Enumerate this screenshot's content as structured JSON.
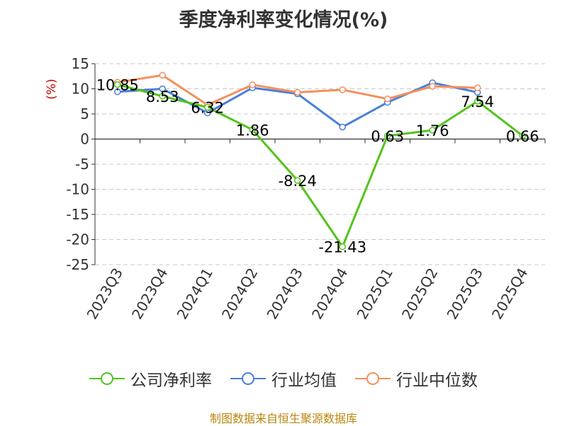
{
  "chart_data": {
    "type": "line",
    "title": "季度净利率变化情况(%)",
    "ylabel": "(%)",
    "xlabel": "",
    "categories": [
      "2023Q3",
      "2023Q4",
      "2024Q1",
      "2024Q2",
      "2024Q3",
      "2024Q4",
      "2025Q1",
      "2025Q2",
      "2025Q3",
      "2025Q4"
    ],
    "ylim": [
      -25,
      15
    ],
    "yticks": [
      15,
      10,
      5,
      0,
      -5,
      -10,
      -15,
      -20,
      -25
    ],
    "grid": true,
    "legend_position": "bottom",
    "series": [
      {
        "name": "公司净利率",
        "color": "#52c41a",
        "values": [
          10.85,
          8.53,
          6.32,
          1.86,
          -8.24,
          -21.43,
          0.63,
          1.76,
          7.54,
          0.66
        ],
        "labels": [
          "10.85",
          "8.53",
          "6.32",
          "1.86",
          "-8.24",
          "-21.43",
          "0.63",
          "1.76",
          "7.54",
          "0.66"
        ]
      },
      {
        "name": "行业均值",
        "color": "#4a7fd8",
        "values": [
          9.4,
          10.0,
          5.2,
          10.2,
          9.0,
          2.4,
          7.3,
          11.2,
          9.3,
          null
        ]
      },
      {
        "name": "行业中位数",
        "color": "#f58f5c",
        "values": [
          11.3,
          12.7,
          6.8,
          10.8,
          9.3,
          9.8,
          8.0,
          10.5,
          10.2,
          null
        ]
      }
    ]
  },
  "footer": "制图数据来自恒生聚源数据库"
}
